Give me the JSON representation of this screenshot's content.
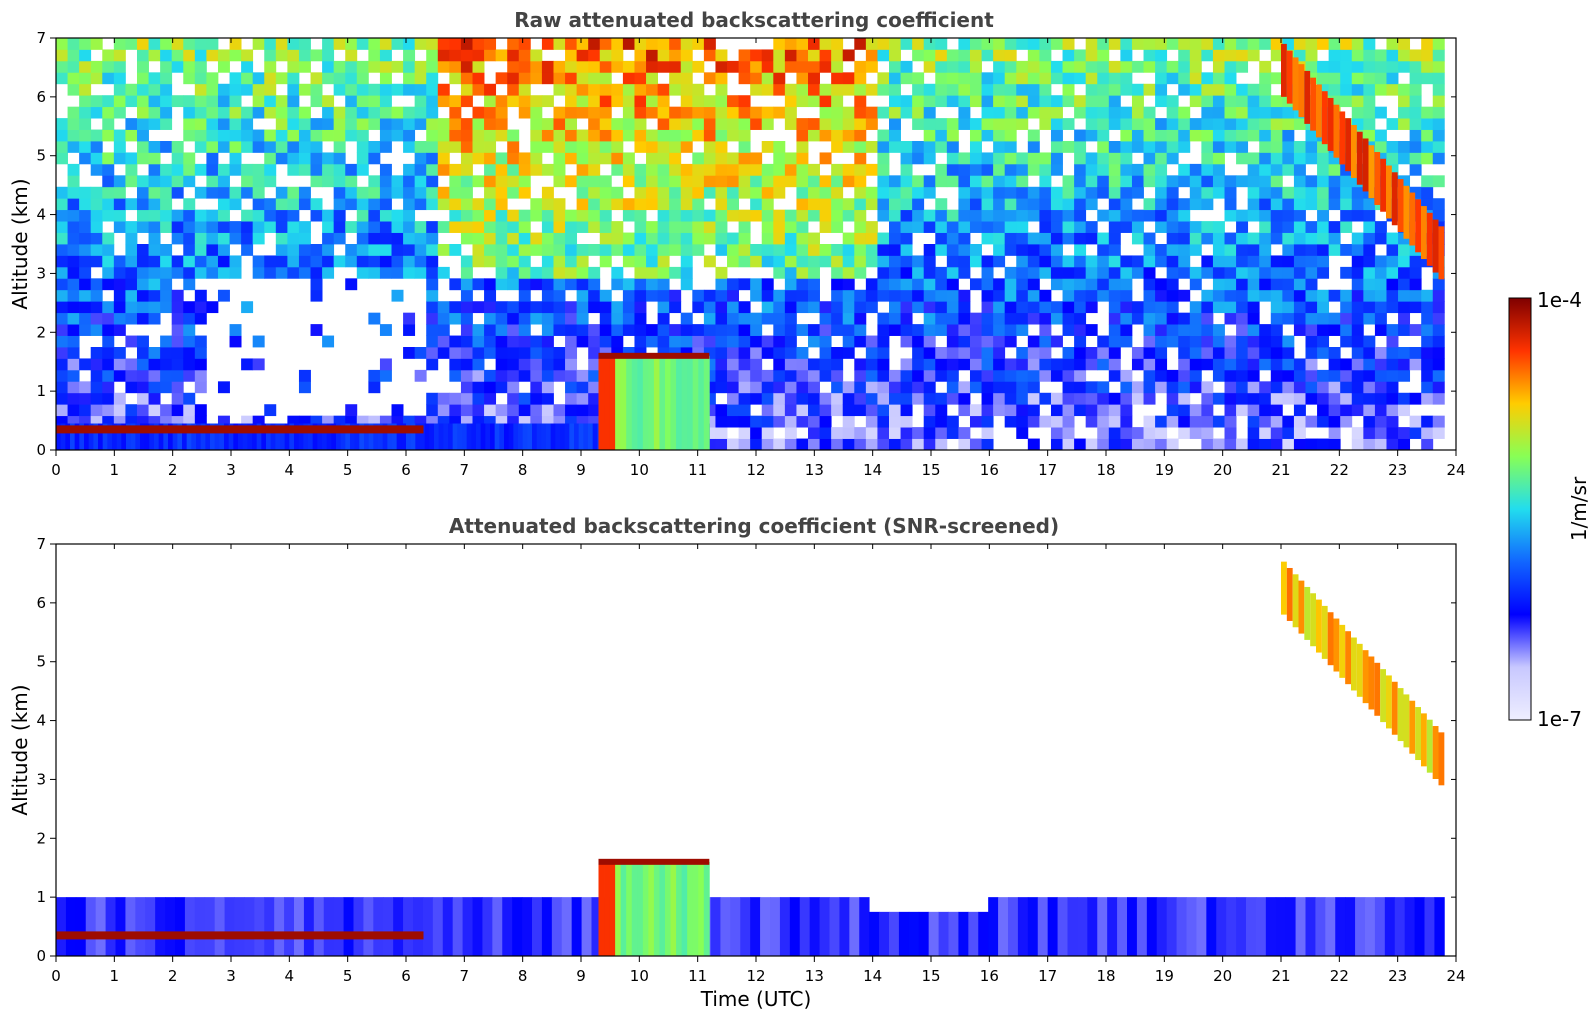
{
  "chart_data": [
    {
      "type": "heatmap",
      "title": "Raw attenuated backscattering coefficient",
      "xlabel": "",
      "ylabel": "Altitude (km)",
      "xlim": [
        0,
        24
      ],
      "ylim": [
        0,
        7
      ],
      "x_ticks": [
        "0",
        "1",
        "2",
        "3",
        "4",
        "5",
        "6",
        "7",
        "8",
        "9",
        "10",
        "11",
        "12",
        "13",
        "14",
        "15",
        "16",
        "17",
        "18",
        "19",
        "20",
        "21",
        "22",
        "23",
        "24"
      ],
      "y_ticks": [
        "0",
        "1",
        "2",
        "3",
        "4",
        "5",
        "6",
        "7"
      ],
      "grid": false,
      "features": [
        {
          "kind": "noisy-background",
          "x": [
            0,
            23.8
          ],
          "y": [
            0,
            7
          ],
          "level": 0.45
        },
        {
          "kind": "boundary-layer",
          "x": [
            0,
            11.2
          ],
          "top_km": 0.45,
          "level": 0.3
        },
        {
          "kind": "cloud-base-line",
          "x": [
            0,
            6.3
          ],
          "altitude_km": 0.35,
          "level": 0.97
        },
        {
          "kind": "aerosol-column",
          "x": [
            9.3,
            11.2
          ],
          "y": [
            0,
            1.6
          ],
          "level": 0.6
        },
        {
          "kind": "cirrus-band",
          "x": [
            21.0,
            23.8
          ],
          "y": [
            2.8,
            6.9
          ],
          "level": 0.85
        }
      ]
    },
    {
      "type": "heatmap",
      "title": "Attenuated backscattering coefficient (SNR-screened)",
      "xlabel": "Time (UTC)",
      "ylabel": "Altitude (km)",
      "xlim": [
        0,
        24
      ],
      "ylim": [
        0,
        7
      ],
      "x_ticks": [
        "0",
        "1",
        "2",
        "3",
        "4",
        "5",
        "6",
        "7",
        "8",
        "9",
        "10",
        "11",
        "12",
        "13",
        "14",
        "15",
        "16",
        "17",
        "18",
        "19",
        "20",
        "21",
        "22",
        "23",
        "24"
      ],
      "y_ticks": [
        "0",
        "1",
        "2",
        "3",
        "4",
        "5",
        "6",
        "7"
      ],
      "grid": false,
      "features": [
        {
          "kind": "boundary-layer",
          "x": [
            0,
            23.8
          ],
          "top_km": 1.0,
          "level": 0.22
        },
        {
          "kind": "cloud-base-line",
          "x": [
            0,
            6.3
          ],
          "altitude_km": 0.35,
          "level": 0.97
        },
        {
          "kind": "aerosol-column",
          "x": [
            9.3,
            11.2
          ],
          "y": [
            0,
            1.6
          ],
          "level": 0.6
        },
        {
          "kind": "cirrus-band",
          "x": [
            21.0,
            23.8
          ],
          "y": [
            2.8,
            6.7
          ],
          "level": 0.75
        }
      ]
    }
  ],
  "colorbar": {
    "top_label": "1e-4",
    "bottom_label": "1e-7",
    "unit_label": "1/m/sr",
    "colormap": [
      "#7f0000",
      "#ff3300",
      "#ffcc00",
      "#88ff55",
      "#22ddee",
      "#1166ff",
      "#0000ff",
      "#c8c8ff",
      "#eeeeff"
    ]
  }
}
